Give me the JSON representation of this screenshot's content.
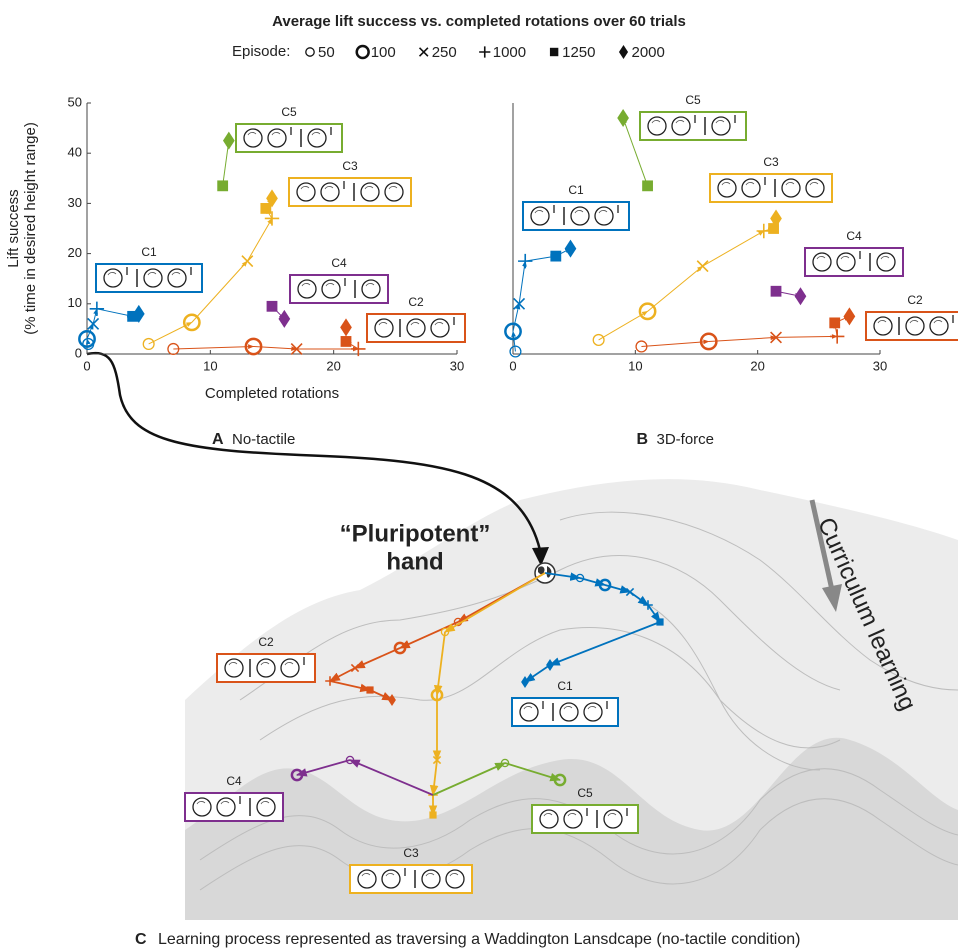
{
  "title": "Average lift success vs. completed rotations over 60 trials",
  "legend_title": "Episode:",
  "episodes": [
    "50",
    "100",
    "250",
    "1000",
    "1250",
    "2000"
  ],
  "chart_data": [
    {
      "type": "scatter",
      "panel": "A",
      "subtitle": "No-tactile",
      "xlabel": "Completed rotations",
      "ylabel": [
        "Lift success",
        "(% time in desired height range)"
      ],
      "xlim": [
        0,
        30
      ],
      "ylim": [
        0,
        50
      ],
      "xticks": [
        0,
        10,
        20,
        30
      ],
      "yticks": [
        0,
        10,
        20,
        30,
        40,
        50
      ],
      "series": [
        {
          "name": "C1",
          "color": "#0072bd",
          "x": [
            0.1,
            0,
            0.5,
            0.8,
            3.7,
            4.2
          ],
          "values": [
            2,
            3,
            6,
            9,
            7.5,
            8
          ]
        },
        {
          "name": "C2",
          "color": "#d95319",
          "x": [
            7,
            13.5,
            17,
            22,
            21,
            21
          ],
          "values": [
            1,
            1.5,
            1,
            1,
            2.5,
            5.3
          ]
        },
        {
          "name": "C3",
          "color": "#edb120",
          "x": [
            5,
            8.5,
            13,
            15,
            14.5,
            15
          ],
          "values": [
            2,
            6.3,
            18.5,
            27,
            29,
            31
          ]
        },
        {
          "name": "C4",
          "color": "#7e2f8e",
          "x": [
            null,
            null,
            null,
            null,
            15,
            16
          ],
          "values": [
            null,
            null,
            null,
            null,
            9.5,
            7
          ]
        },
        {
          "name": "C5",
          "color": "#77ac30",
          "x": [
            null,
            null,
            null,
            null,
            11,
            11.5
          ],
          "values": [
            null,
            null,
            null,
            null,
            33.5,
            42.5
          ]
        }
      ]
    },
    {
      "type": "scatter",
      "panel": "B",
      "subtitle": "3D-force",
      "xlim": [
        0,
        30
      ],
      "ylim": [
        0,
        50
      ],
      "xticks": [
        0,
        10,
        20,
        30
      ],
      "series": [
        {
          "name": "C1",
          "color": "#0072bd",
          "x": [
            0.2,
            0,
            0.5,
            1,
            3.5,
            4.7
          ],
          "values": [
            0.5,
            4.5,
            10,
            18.5,
            19.5,
            21
          ]
        },
        {
          "name": "C2",
          "color": "#d95319",
          "x": [
            10.5,
            16,
            21.5,
            26.5,
            26.3,
            27.5
          ],
          "values": [
            1.5,
            2.5,
            3.3,
            3.5,
            6.2,
            7.5
          ]
        },
        {
          "name": "C3",
          "color": "#edb120",
          "x": [
            7,
            11,
            15.5,
            20.5,
            21.3,
            21.5
          ],
          "values": [
            2.8,
            8.5,
            17.5,
            24.5,
            25,
            27
          ]
        },
        {
          "name": "C4",
          "color": "#7e2f8e",
          "x": [
            null,
            null,
            null,
            null,
            21.5,
            23.5
          ],
          "values": [
            null,
            null,
            null,
            null,
            12.5,
            11.5
          ]
        },
        {
          "name": "C5",
          "color": "#77ac30",
          "x": [
            null,
            null,
            null,
            null,
            11,
            9
          ],
          "values": [
            null,
            null,
            null,
            null,
            33.5,
            47
          ]
        }
      ]
    }
  ],
  "panel_c": {
    "letter": "C",
    "caption": "Learning process represented as traversing a Waddington Lansdcape (no-tactile condition)",
    "start_label": [
      "“Pluripotent”",
      "hand"
    ],
    "direction_label": "Curriculum learning",
    "curricula": [
      "C1",
      "C2",
      "C3",
      "C4",
      "C5"
    ]
  }
}
